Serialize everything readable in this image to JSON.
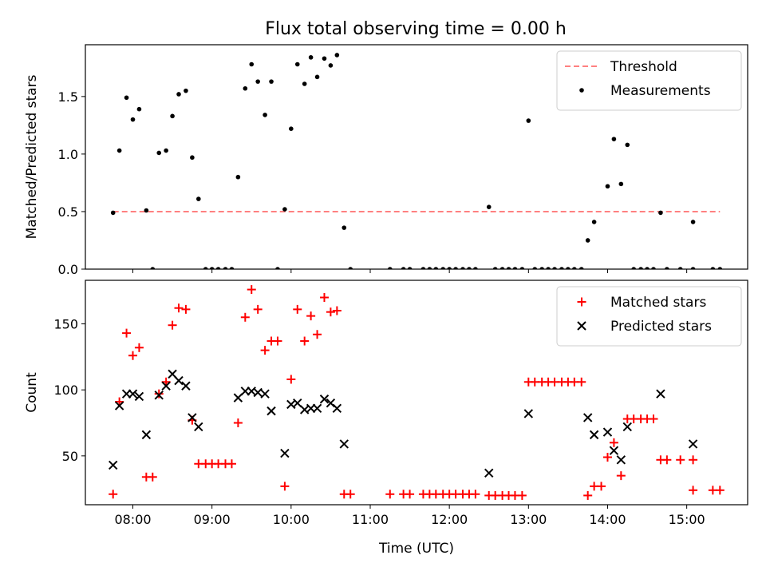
{
  "title": "Flux total observing time = 0.00 h",
  "chart_data": [
    {
      "type": "scatter",
      "ylabel": "Matched/Predicted stars",
      "xlim": [
        7.4,
        15.77
      ],
      "ylim": [
        0,
        1.95
      ],
      "yticks": [
        0.0,
        0.5,
        1.0,
        1.5
      ],
      "ytick_labels": [
        "0.0",
        "0.5",
        "1.0",
        "1.5"
      ],
      "legend_position": "upper-right",
      "threshold": {
        "name": "Threshold",
        "value": 0.5,
        "x_start": 7.75,
        "x_end": 15.42,
        "color": "#ff8080"
      },
      "series": [
        {
          "name": "Measurements",
          "color": "#000000",
          "marker": "dot",
          "points": [
            [
              7.75,
              0.49
            ],
            [
              7.83,
              1.03
            ],
            [
              7.92,
              1.49
            ],
            [
              8.0,
              1.3
            ],
            [
              8.08,
              1.39
            ],
            [
              8.17,
              0.51
            ],
            [
              8.25,
              0.0
            ],
            [
              8.33,
              1.01
            ],
            [
              8.42,
              1.03
            ],
            [
              8.5,
              1.33
            ],
            [
              8.58,
              1.52
            ],
            [
              8.67,
              1.55
            ],
            [
              8.75,
              0.97
            ],
            [
              8.83,
              0.61
            ],
            [
              8.92,
              0.0
            ],
            [
              9.0,
              0.0
            ],
            [
              9.08,
              0.0
            ],
            [
              9.17,
              0.0
            ],
            [
              9.25,
              0.0
            ],
            [
              9.33,
              0.8
            ],
            [
              9.42,
              1.57
            ],
            [
              9.5,
              1.78
            ],
            [
              9.58,
              1.63
            ],
            [
              9.67,
              1.34
            ],
            [
              9.75,
              1.63
            ],
            [
              9.83,
              0.0
            ],
            [
              9.92,
              0.52
            ],
            [
              10.0,
              1.22
            ],
            [
              10.08,
              1.78
            ],
            [
              10.17,
              1.61
            ],
            [
              10.25,
              1.84
            ],
            [
              10.33,
              1.67
            ],
            [
              10.42,
              1.83
            ],
            [
              10.5,
              1.77
            ],
            [
              10.58,
              1.86
            ],
            [
              10.67,
              0.36
            ],
            [
              10.75,
              0.0
            ],
            [
              11.25,
              0.0
            ],
            [
              11.42,
              0.0
            ],
            [
              11.5,
              0.0
            ],
            [
              11.67,
              0.0
            ],
            [
              11.75,
              0.0
            ],
            [
              11.83,
              0.0
            ],
            [
              11.92,
              0.0
            ],
            [
              12.0,
              0.0
            ],
            [
              12.08,
              0.0
            ],
            [
              12.17,
              0.0
            ],
            [
              12.25,
              0.0
            ],
            [
              12.33,
              0.0
            ],
            [
              12.5,
              0.54
            ],
            [
              12.58,
              0.0
            ],
            [
              12.67,
              0.0
            ],
            [
              12.75,
              0.0
            ],
            [
              12.83,
              0.0
            ],
            [
              12.92,
              0.0
            ],
            [
              13.0,
              1.29
            ],
            [
              13.08,
              0.0
            ],
            [
              13.17,
              0.0
            ],
            [
              13.25,
              0.0
            ],
            [
              13.33,
              0.0
            ],
            [
              13.42,
              0.0
            ],
            [
              13.5,
              0.0
            ],
            [
              13.58,
              0.0
            ],
            [
              13.67,
              0.0
            ],
            [
              13.75,
              0.25
            ],
            [
              13.83,
              0.41
            ],
            [
              14.0,
              0.72
            ],
            [
              14.08,
              1.13
            ],
            [
              14.17,
              0.74
            ],
            [
              14.25,
              1.08
            ],
            [
              14.33,
              0.0
            ],
            [
              14.42,
              0.0
            ],
            [
              14.5,
              0.0
            ],
            [
              14.58,
              0.0
            ],
            [
              14.67,
              0.49
            ],
            [
              14.75,
              0.0
            ],
            [
              14.92,
              0.0
            ],
            [
              15.08,
              0.0
            ],
            [
              15.08,
              0.41
            ],
            [
              15.33,
              0.0
            ],
            [
              15.42,
              0.0
            ]
          ]
        }
      ]
    },
    {
      "type": "scatter",
      "xlabel": "Time (UTC)",
      "ylabel": "Count",
      "xlim": [
        7.4,
        15.77
      ],
      "ylim": [
        13,
        183
      ],
      "xticks": [
        8,
        9,
        10,
        11,
        12,
        13,
        14,
        15
      ],
      "xtick_labels": [
        "08:00",
        "09:00",
        "10:00",
        "11:00",
        "12:00",
        "13:00",
        "14:00",
        "15:00"
      ],
      "yticks": [
        50,
        100,
        150
      ],
      "ytick_labels": [
        "50",
        "100",
        "150"
      ],
      "legend_position": "upper-right",
      "series": [
        {
          "name": "Matched stars",
          "color": "#ff0000",
          "marker": "plus",
          "points": [
            [
              7.75,
              21
            ],
            [
              7.83,
              91
            ],
            [
              7.92,
              143
            ],
            [
              8.0,
              126
            ],
            [
              8.08,
              132
            ],
            [
              8.17,
              34
            ],
            [
              8.25,
              34
            ],
            [
              8.33,
              97
            ],
            [
              8.42,
              106
            ],
            [
              8.5,
              149
            ],
            [
              8.58,
              162
            ],
            [
              8.67,
              161
            ],
            [
              8.75,
              77
            ],
            [
              8.83,
              44
            ],
            [
              8.92,
              44
            ],
            [
              9.0,
              44
            ],
            [
              9.08,
              44
            ],
            [
              9.17,
              44
            ],
            [
              9.25,
              44
            ],
            [
              9.33,
              75
            ],
            [
              9.42,
              155
            ],
            [
              9.5,
              176
            ],
            [
              9.58,
              161
            ],
            [
              9.67,
              130
            ],
            [
              9.75,
              137
            ],
            [
              9.83,
              137
            ],
            [
              9.92,
              27
            ],
            [
              10.0,
              108
            ],
            [
              10.08,
              161
            ],
            [
              10.17,
              137
            ],
            [
              10.25,
              156
            ],
            [
              10.33,
              142
            ],
            [
              10.42,
              170
            ],
            [
              10.5,
              159
            ],
            [
              10.58,
              160
            ],
            [
              10.67,
              21
            ],
            [
              10.75,
              21
            ],
            [
              11.25,
              21
            ],
            [
              11.42,
              21
            ],
            [
              11.5,
              21
            ],
            [
              11.67,
              21
            ],
            [
              11.75,
              21
            ],
            [
              11.83,
              21
            ],
            [
              11.92,
              21
            ],
            [
              12.0,
              21
            ],
            [
              12.08,
              21
            ],
            [
              12.17,
              21
            ],
            [
              12.25,
              21
            ],
            [
              12.33,
              21
            ],
            [
              12.5,
              20
            ],
            [
              12.58,
              20
            ],
            [
              12.67,
              20
            ],
            [
              12.75,
              20
            ],
            [
              12.83,
              20
            ],
            [
              12.92,
              20
            ],
            [
              13.0,
              106
            ],
            [
              13.08,
              106
            ],
            [
              13.17,
              106
            ],
            [
              13.25,
              106
            ],
            [
              13.33,
              106
            ],
            [
              13.42,
              106
            ],
            [
              13.5,
              106
            ],
            [
              13.58,
              106
            ],
            [
              13.67,
              106
            ],
            [
              13.75,
              20
            ],
            [
              13.83,
              27
            ],
            [
              13.92,
              27
            ],
            [
              14.0,
              49
            ],
            [
              14.08,
              60
            ],
            [
              14.17,
              35
            ],
            [
              14.25,
              78
            ],
            [
              14.33,
              78
            ],
            [
              14.42,
              78
            ],
            [
              14.5,
              78
            ],
            [
              14.58,
              78
            ],
            [
              14.67,
              47
            ],
            [
              14.75,
              47
            ],
            [
              14.92,
              47
            ],
            [
              15.08,
              47
            ],
            [
              15.08,
              24
            ],
            [
              15.33,
              24
            ],
            [
              15.42,
              24
            ]
          ]
        },
        {
          "name": "Predicted stars",
          "color": "#000000",
          "marker": "x",
          "points": [
            [
              7.75,
              43
            ],
            [
              7.83,
              88
            ],
            [
              7.92,
              97
            ],
            [
              8.0,
              97
            ],
            [
              8.08,
              95
            ],
            [
              8.17,
              66
            ],
            [
              8.33,
              96
            ],
            [
              8.42,
              103
            ],
            [
              8.5,
              112
            ],
            [
              8.58,
              107
            ],
            [
              8.67,
              103
            ],
            [
              8.75,
              79
            ],
            [
              8.83,
              72
            ],
            [
              9.33,
              94
            ],
            [
              9.42,
              99
            ],
            [
              9.5,
              99
            ],
            [
              9.58,
              98
            ],
            [
              9.67,
              97
            ],
            [
              9.75,
              84
            ],
            [
              9.92,
              52
            ],
            [
              10.0,
              89
            ],
            [
              10.08,
              90
            ],
            [
              10.17,
              85
            ],
            [
              10.25,
              86
            ],
            [
              10.33,
              86
            ],
            [
              10.42,
              93
            ],
            [
              10.5,
              90
            ],
            [
              10.58,
              86
            ],
            [
              10.67,
              59
            ],
            [
              12.5,
              37
            ],
            [
              13.0,
              82
            ],
            [
              13.75,
              79
            ],
            [
              13.83,
              66
            ],
            [
              14.0,
              68
            ],
            [
              14.08,
              54
            ],
            [
              14.17,
              47
            ],
            [
              14.25,
              72
            ],
            [
              14.67,
              97
            ],
            [
              15.08,
              59
            ]
          ]
        }
      ]
    }
  ]
}
